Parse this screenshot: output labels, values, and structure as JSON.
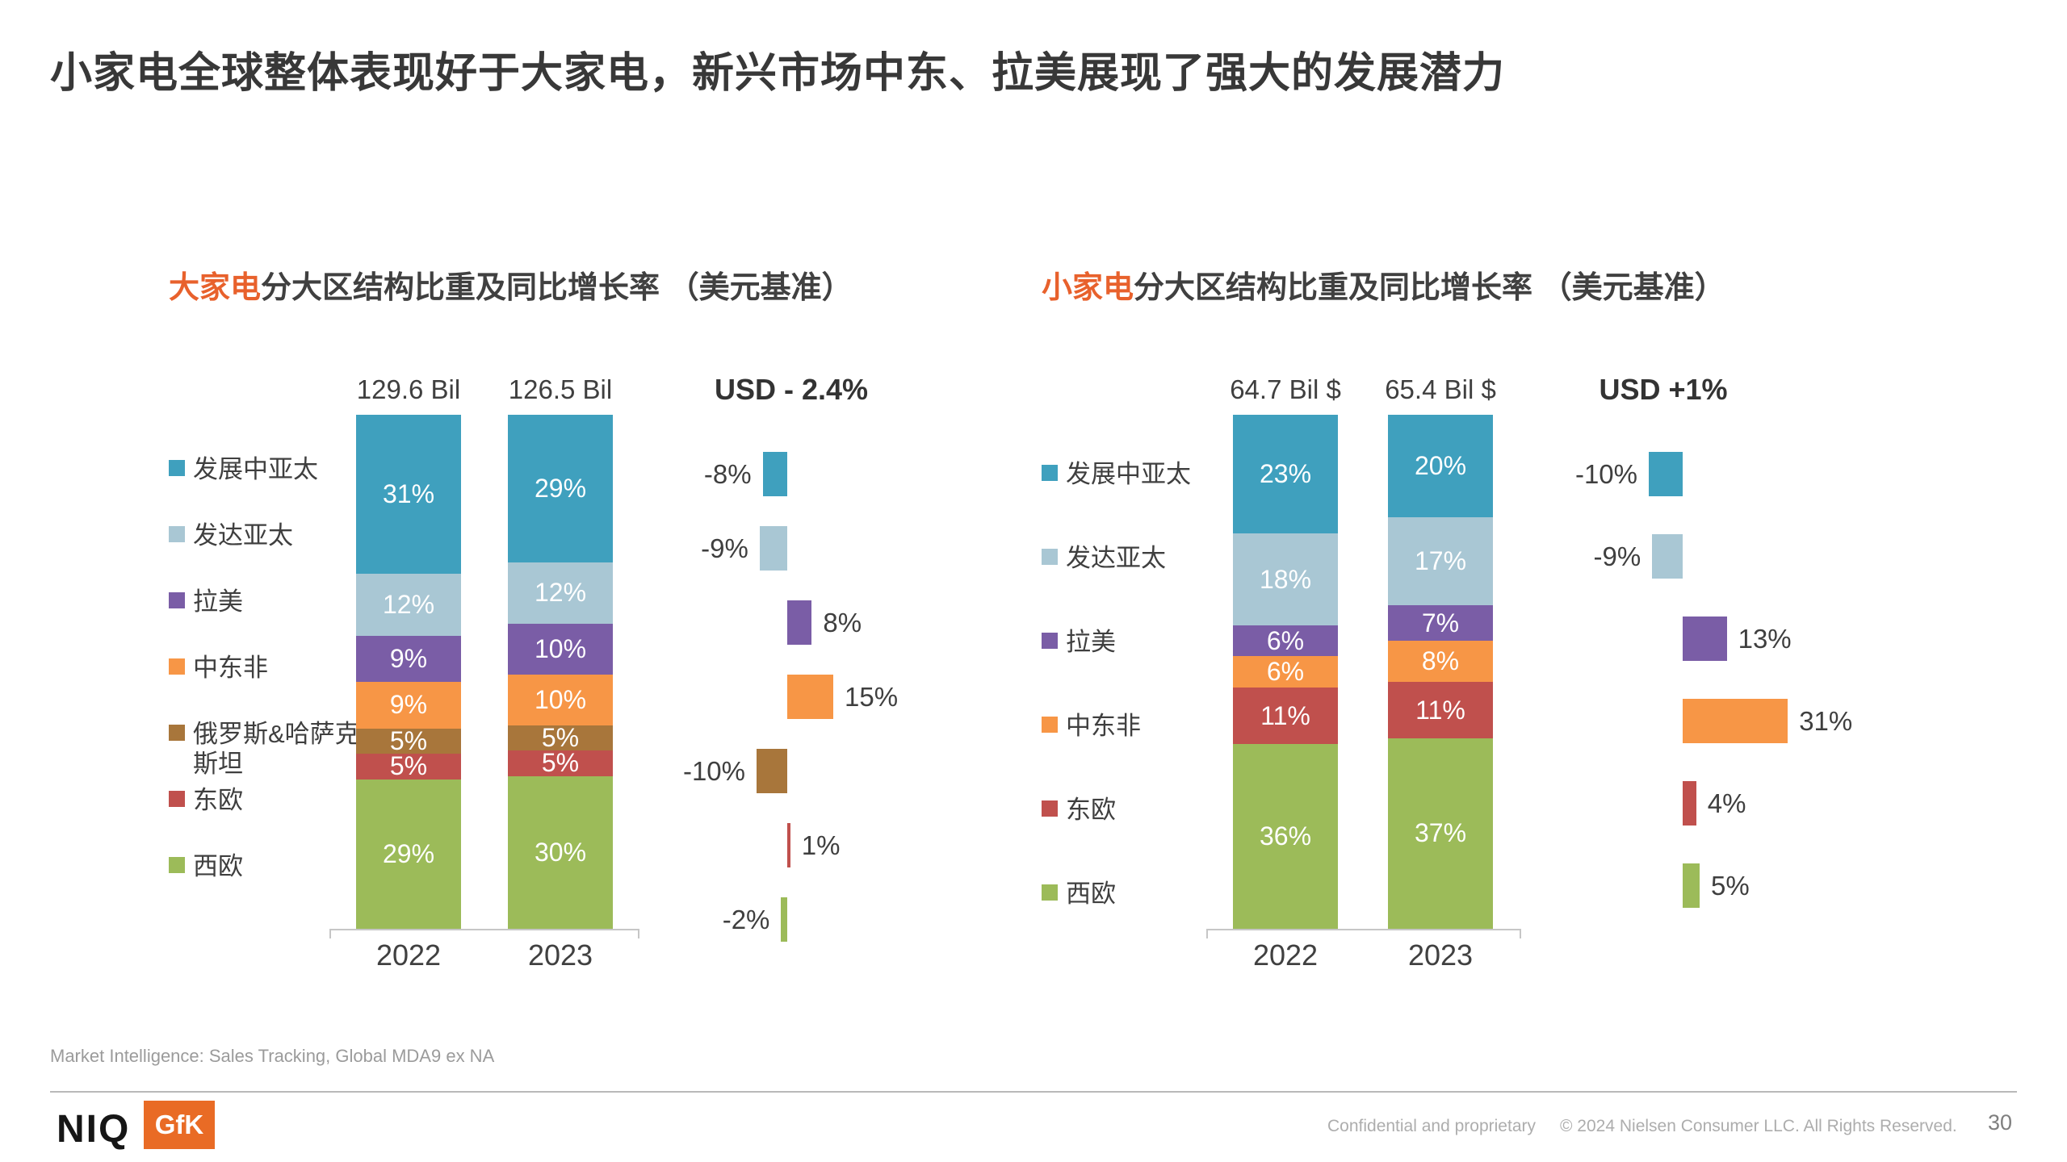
{
  "slide": {
    "title": "小家电全球整体表现好于大家电，新兴市场中东、拉美展现了强大的发展潜力"
  },
  "source_note": "Market Intelligence: Sales Tracking, Global MDA9 ex NA",
  "footer": {
    "niq_logo": "NIQ",
    "gfk_logo": "GfK",
    "confidential": "Confidential and proprietary",
    "copyright": "© 2024 Nielsen Consumer LLC. All Rights Reserved.",
    "page_number": "30"
  },
  "colors": {
    "accent_orange": "#E8612C",
    "text_dark": "#3F3F3F",
    "text_gray": "#ADADAD",
    "axis_gray": "#C6C6C6",
    "gfk_orange": "#E96B25",
    "teal": "#3FA0BE",
    "light_blue": "#A9C7D4",
    "purple": "#7A5DA6",
    "orange": "#F79646",
    "brown": "#A8763B",
    "red": "#C0504D",
    "green": "#9CBB59"
  },
  "chart_data": [
    {
      "type": "bar",
      "stacked": true,
      "title_highlight": "大家电",
      "title_rest": "分大区结构比重及同比增长率 （美元基准）",
      "usd_growth_label": "USD  - 2.4%",
      "categories": [
        "2022",
        "2023"
      ],
      "totals": [
        "129.6 Bil",
        "126.5 Bil"
      ],
      "value_unit": "percent share of total",
      "legend_position": "left",
      "series": [
        {
          "name": "发展中亚太",
          "color": "#3FA0BE",
          "values": [
            31,
            29
          ],
          "growth_pct": -8,
          "growth_label": "-8%"
        },
        {
          "name": "发达亚太",
          "color": "#A9C7D4",
          "values": [
            12,
            12
          ],
          "growth_pct": -9,
          "growth_label": "-9%"
        },
        {
          "name": "拉美",
          "color": "#7A5DA6",
          "values": [
            9,
            10
          ],
          "growth_pct": 8,
          "growth_label": "8%"
        },
        {
          "name": "中东非",
          "color": "#F79646",
          "values": [
            9,
            10
          ],
          "growth_pct": 15,
          "growth_label": "15%"
        },
        {
          "name": "俄罗斯&哈萨克斯坦",
          "color": "#A8763B",
          "values": [
            5,
            5
          ],
          "growth_pct": -10,
          "growth_label": "-10%"
        },
        {
          "name": "东欧",
          "color": "#C0504D",
          "values": [
            5,
            5
          ],
          "growth_pct": 1,
          "growth_label": "1%"
        },
        {
          "name": "西欧",
          "color": "#9CBB59",
          "values": [
            29,
            30
          ],
          "growth_pct": -2,
          "growth_label": "-2%"
        }
      ]
    },
    {
      "type": "bar",
      "stacked": true,
      "title_highlight": "小家电",
      "title_rest": "分大区结构比重及同比增长率 （美元基准）",
      "usd_growth_label": "USD  +1%",
      "categories": [
        "2022",
        "2023"
      ],
      "totals": [
        "64.7 Bil $",
        "65.4 Bil $"
      ],
      "value_unit": "percent share of total",
      "legend_position": "left",
      "series": [
        {
          "name": "发展中亚太",
          "color": "#3FA0BE",
          "values": [
            23,
            20
          ],
          "growth_pct": -10,
          "growth_label": "-10%"
        },
        {
          "name": "发达亚太",
          "color": "#A9C7D4",
          "values": [
            18,
            17
          ],
          "growth_pct": -9,
          "growth_label": "-9%"
        },
        {
          "name": "拉美",
          "color": "#7A5DA6",
          "values": [
            6,
            7
          ],
          "growth_pct": 13,
          "growth_label": "13%"
        },
        {
          "name": "中东非",
          "color": "#F79646",
          "values": [
            6,
            8
          ],
          "growth_pct": 31,
          "growth_label": "31%"
        },
        {
          "name": "东欧",
          "color": "#C0504D",
          "values": [
            11,
            11
          ],
          "growth_pct": 4,
          "growth_label": "4%"
        },
        {
          "name": "西欧",
          "color": "#9CBB59",
          "values": [
            36,
            37
          ],
          "growth_pct": 5,
          "growth_label": "5%"
        }
      ]
    }
  ]
}
